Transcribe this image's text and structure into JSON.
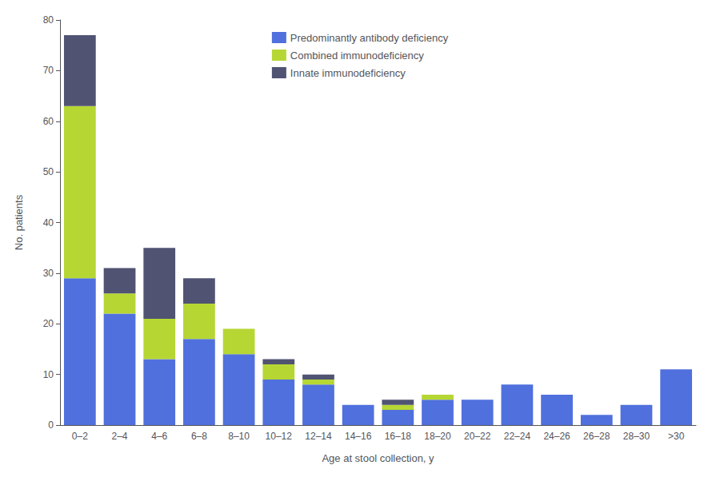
{
  "chart_data": {
    "type": "bar",
    "categories": [
      "0–2",
      "2–4",
      "4–6",
      "6–8",
      "8–10",
      "10–12",
      "12–14",
      "14–16",
      "16–18",
      "18–20",
      "20–22",
      "22–24",
      "24–26",
      "26–28",
      "28–30",
      ">30"
    ],
    "series": [
      {
        "name": "Predominantly antibody deficiency",
        "values": [
          29,
          22,
          13,
          17,
          14,
          9,
          8,
          4,
          3,
          5,
          5,
          8,
          6,
          2,
          4,
          11
        ]
      },
      {
        "name": "Combined immunodeficiency",
        "values": [
          34,
          4,
          8,
          7,
          5,
          3,
          1,
          0,
          1,
          1,
          0,
          0,
          0,
          0,
          0,
          0
        ]
      },
      {
        "name": "Innate immunodeficiency",
        "values": [
          14,
          5,
          14,
          5,
          0,
          1,
          1,
          0,
          1,
          0,
          0,
          0,
          0,
          0,
          0,
          0
        ]
      }
    ],
    "xlabel": "Age at stool collection, y",
    "ylabel": "No. patients",
    "ylim": [
      0,
      80
    ],
    "yticks": [
      0,
      10,
      20,
      30,
      40,
      50,
      60,
      70,
      80
    ],
    "stacked": true,
    "grid": false,
    "legend": "upper center"
  }
}
